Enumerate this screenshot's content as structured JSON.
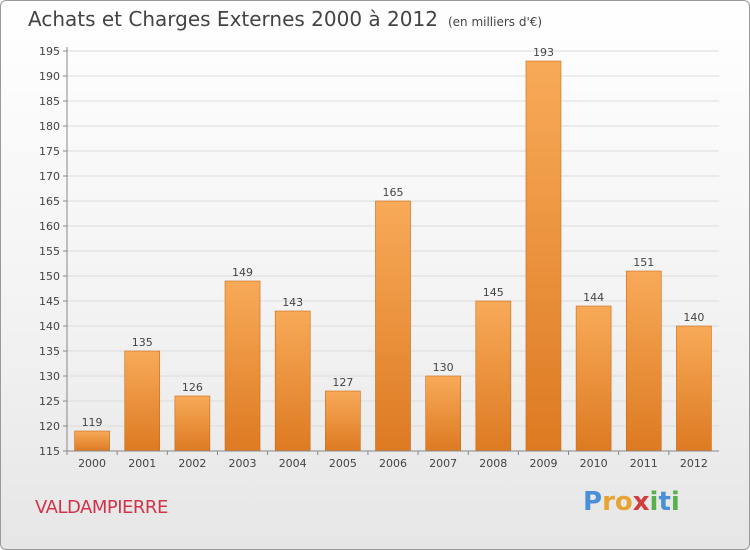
{
  "title": "Achats et Charges Externes 2000 à 2012",
  "subtitle": "(en milliers d'€)",
  "place": "VALDAMPIERRE",
  "logo": {
    "letters": [
      "P",
      "r",
      "o",
      "x",
      "i",
      "t",
      "i"
    ],
    "colors": [
      "#4a8fd8",
      "#e9a330",
      "#e9a330",
      "#d23c3c",
      "#58b04a",
      "#4a8fd8",
      "#58b04a"
    ]
  },
  "colors": {
    "bar_light": "#f7a654",
    "bar_dark": "#e07d25",
    "axis": "#888888",
    "text": "#444444"
  },
  "chart_data": {
    "type": "bar",
    "categories": [
      "2000",
      "2001",
      "2002",
      "2003",
      "2004",
      "2005",
      "2006",
      "2007",
      "2008",
      "2009",
      "2010",
      "2011",
      "2012"
    ],
    "values": [
      119,
      135,
      126,
      149,
      143,
      127,
      165,
      130,
      145,
      193,
      144,
      151,
      140
    ],
    "title": "Achats et Charges Externes 2000 à 2012",
    "subtitle": "(en milliers d'€)",
    "xlabel": "",
    "ylabel": "",
    "ylim": [
      115,
      195
    ],
    "yticks": [
      115,
      120,
      125,
      130,
      135,
      140,
      145,
      150,
      155,
      160,
      165,
      170,
      175,
      180,
      185,
      190,
      195
    ],
    "grid": true
  }
}
